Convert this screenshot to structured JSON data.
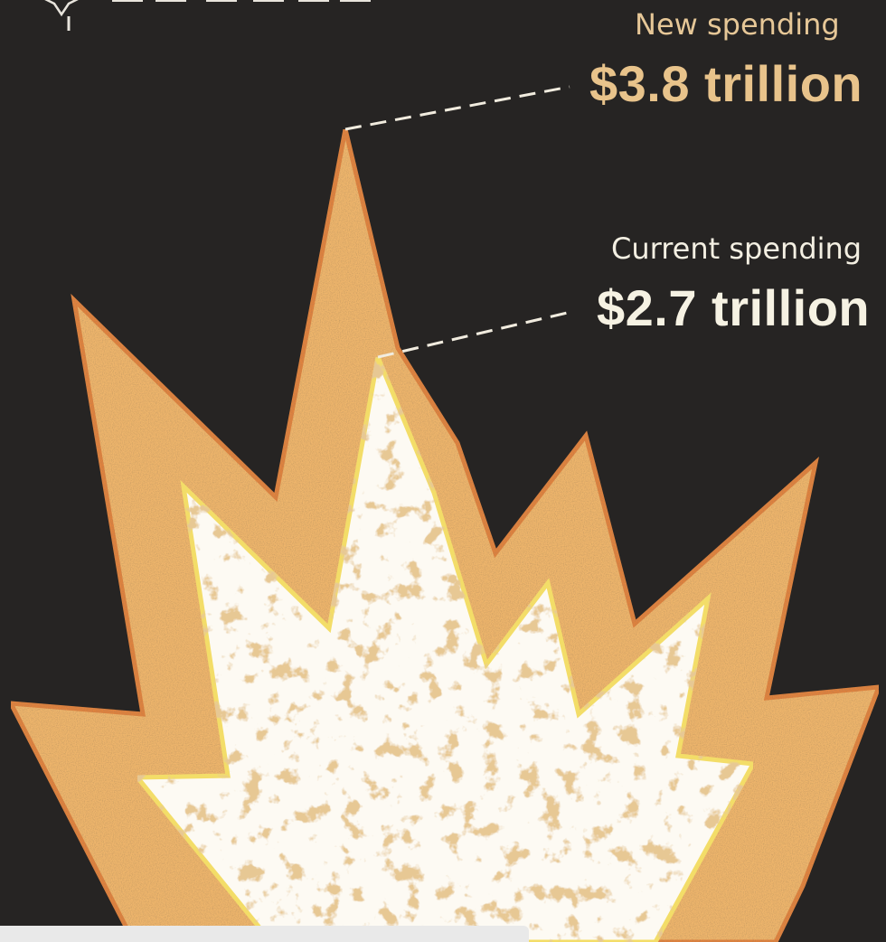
{
  "new_spending": {
    "label": "New spending",
    "value": "$3.8 trillion"
  },
  "current_spending": {
    "label": "Current spending",
    "value": "$2.7 trillion"
  },
  "colors": {
    "background": "#262423",
    "outer_burst": "#eeb56c",
    "outer_burst_stroke": "#e0823e",
    "inner_burst": "#fdfaf3",
    "inner_burst_stroke": "#f3dd68",
    "new_value_text": "#e8c38b",
    "current_value_text": "#f6f2e3"
  },
  "icons": [
    "compass-logo-icon"
  ]
}
